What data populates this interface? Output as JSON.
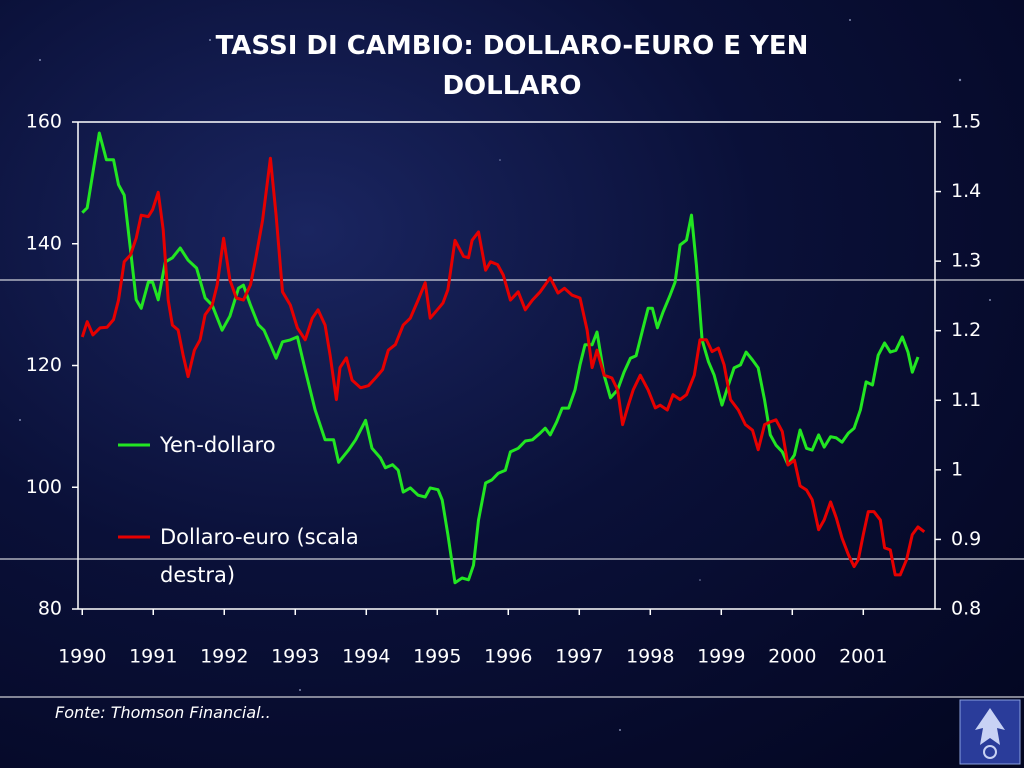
{
  "chart_data": {
    "type": "line",
    "title": "TASSI DI CAMBIO: DOLLARO-EURO E YEN DOLLARO",
    "xlim": [
      1989.94,
      2002.01
    ],
    "xticks": [
      1990,
      1991,
      1992,
      1993,
      1994,
      1995,
      1996,
      1997,
      1998,
      1999,
      2000,
      2001
    ],
    "ylim": [
      80,
      160
    ],
    "yticks": [
      80,
      100,
      120,
      140,
      160
    ],
    "y2lim": [
      0.8,
      1.5
    ],
    "y2ticks": [
      0.8,
      0.9,
      1,
      1.1,
      1.2,
      1.3,
      1.4,
      1.5
    ],
    "grid": false,
    "series": [
      {
        "name": "Yen-dollaro",
        "color": "#22e622",
        "x": [
          1990.0,
          1990.07,
          1990.24,
          1990.34,
          1990.44,
          1990.51,
          1990.59,
          1990.68,
          1990.76,
          1990.83,
          1990.93,
          1990.99,
          1991.07,
          1991.17,
          1991.27,
          1991.38,
          1991.49,
          1991.61,
          1991.73,
          1991.83,
          1991.97,
          1992.08,
          1992.2,
          1992.27,
          1992.37,
          1992.48,
          1992.56,
          1992.65,
          1992.73,
          1992.82,
          1992.93,
          1993.03,
          1993.14,
          1993.28,
          1993.42,
          1993.54,
          1993.61,
          1993.75,
          1993.85,
          1993.99,
          1994.08,
          1994.2,
          1994.27,
          1994.37,
          1994.45,
          1994.52,
          1994.62,
          1994.73,
          1994.83,
          1994.9,
          1995.01,
          1995.07,
          1995.15,
          1995.25,
          1995.35,
          1995.44,
          1995.51,
          1995.58,
          1995.68,
          1995.77,
          1995.86,
          1995.96,
          1996.03,
          1996.14,
          1996.24,
          1996.34,
          1996.45,
          1996.52,
          1996.59,
          1996.68,
          1996.76,
          1996.85,
          1996.94,
          1997.01,
          1997.08,
          1997.18,
          1997.25,
          1997.35,
          1997.44,
          1997.54,
          1997.63,
          1997.72,
          1997.8,
          1997.89,
          1997.97,
          1998.03,
          1998.1,
          1998.18,
          1998.28,
          1998.35,
          1998.42,
          1998.51,
          1998.58,
          1998.65,
          1998.73,
          1998.82,
          1998.9,
          1999.01,
          1999.1,
          1999.18,
          1999.27,
          1999.35,
          1999.44,
          1999.52,
          1999.61,
          1999.69,
          1999.77,
          1999.86,
          1999.94,
          2000.03,
          2000.11,
          2000.2,
          2000.28,
          2000.37,
          2000.45,
          2000.54,
          2000.62,
          2000.7,
          2000.79,
          2000.87,
          2000.96,
          2001.04,
          2001.13,
          2001.21,
          2001.3,
          2001.38,
          2001.46,
          2001.55,
          2001.63,
          2001.69,
          2001.77
        ],
        "values": [
          145.1,
          145.9,
          158.2,
          153.8,
          153.8,
          149.7,
          148.0,
          139.0,
          130.8,
          129.4,
          133.7,
          133.7,
          130.8,
          137.0,
          137.7,
          139.3,
          137.3,
          136.0,
          131.1,
          129.9,
          125.8,
          128.1,
          132.7,
          133.2,
          129.9,
          126.7,
          125.8,
          123.4,
          121.2,
          123.9,
          124.2,
          124.7,
          119.3,
          112.7,
          107.8,
          107.8,
          104.1,
          106.1,
          107.8,
          111.0,
          106.4,
          104.8,
          103.2,
          103.7,
          102.8,
          99.2,
          99.9,
          98.7,
          98.4,
          99.9,
          99.6,
          97.9,
          92.2,
          84.3,
          85.1,
          84.8,
          87.2,
          94.6,
          100.7,
          101.2,
          102.3,
          102.8,
          105.8,
          106.4,
          107.6,
          107.8,
          108.9,
          109.7,
          108.6,
          110.7,
          113.0,
          113.0,
          116.0,
          120.1,
          123.4,
          123.4,
          125.5,
          118.4,
          114.7,
          116.0,
          118.9,
          121.2,
          121.6,
          125.8,
          129.4,
          129.4,
          126.2,
          128.8,
          131.6,
          133.7,
          139.8,
          140.6,
          144.7,
          136.5,
          124.2,
          120.6,
          118.4,
          113.5,
          116.8,
          119.6,
          120.1,
          122.2,
          120.9,
          119.6,
          114.3,
          108.6,
          106.9,
          105.8,
          103.7,
          105.3,
          109.4,
          106.4,
          106.1,
          108.6,
          106.6,
          108.3,
          108.1,
          107.4,
          108.9,
          109.7,
          112.7,
          117.3,
          116.8,
          121.7,
          123.7,
          122.2,
          122.5,
          124.7,
          122.2,
          118.9,
          121.4
        ]
      },
      {
        "name": "Dollaro-euro (scala destra)",
        "color": "#e60000",
        "axis": "y2",
        "x": [
          1990.0,
          1990.07,
          1990.15,
          1990.25,
          1990.35,
          1990.44,
          1990.51,
          1990.59,
          1990.68,
          1990.76,
          1990.83,
          1990.93,
          1990.99,
          1991.07,
          1991.14,
          1991.21,
          1991.27,
          1991.35,
          1991.42,
          1991.49,
          1991.58,
          1991.66,
          1991.73,
          1991.83,
          1991.9,
          1991.99,
          1992.08,
          1992.17,
          1992.27,
          1992.37,
          1992.44,
          1992.54,
          1992.65,
          1992.73,
          1992.82,
          1992.93,
          1993.03,
          1993.14,
          1993.24,
          1993.32,
          1993.42,
          1993.49,
          1993.58,
          1993.63,
          1993.72,
          1993.8,
          1993.92,
          1994.03,
          1994.13,
          1994.23,
          1994.31,
          1994.41,
          1994.52,
          1994.62,
          1994.73,
          1994.83,
          1994.9,
          1995.0,
          1995.08,
          1995.15,
          1995.25,
          1995.37,
          1995.44,
          1995.49,
          1995.58,
          1995.68,
          1995.75,
          1995.85,
          1995.93,
          1996.03,
          1996.14,
          1996.24,
          1996.34,
          1996.45,
          1996.59,
          1996.7,
          1996.79,
          1996.9,
          1997.01,
          1997.11,
          1997.18,
          1997.25,
          1997.35,
          1997.46,
          1997.54,
          1997.61,
          1997.69,
          1997.76,
          1997.86,
          1997.97,
          1998.07,
          1998.14,
          1998.24,
          1998.32,
          1998.42,
          1998.51,
          1998.62,
          1998.7,
          1998.79,
          1998.87,
          1998.96,
          1999.04,
          1999.13,
          1999.24,
          1999.34,
          1999.44,
          1999.52,
          1999.61,
          1999.69,
          1999.77,
          1999.86,
          1999.94,
          2000.03,
          2000.11,
          2000.2,
          2000.28,
          2000.37,
          2000.45,
          2000.54,
          2000.62,
          2000.7,
          2000.79,
          2000.87,
          2000.93,
          2001.0,
          2001.07,
          2001.15,
          2001.24,
          2001.3,
          2001.38,
          2001.45,
          2001.52,
          2001.61,
          2001.69,
          2001.77,
          2001.86
        ],
        "values": [
          1.191,
          1.213,
          1.194,
          1.204,
          1.205,
          1.216,
          1.244,
          1.299,
          1.309,
          1.333,
          1.366,
          1.364,
          1.374,
          1.399,
          1.345,
          1.244,
          1.208,
          1.201,
          1.165,
          1.134,
          1.172,
          1.187,
          1.223,
          1.237,
          1.266,
          1.333,
          1.273,
          1.247,
          1.244,
          1.266,
          1.302,
          1.359,
          1.448,
          1.366,
          1.256,
          1.237,
          1.204,
          1.187,
          1.218,
          1.23,
          1.208,
          1.165,
          1.101,
          1.147,
          1.161,
          1.129,
          1.118,
          1.121,
          1.132,
          1.144,
          1.172,
          1.18,
          1.208,
          1.218,
          1.244,
          1.269,
          1.218,
          1.23,
          1.24,
          1.259,
          1.33,
          1.307,
          1.305,
          1.33,
          1.342,
          1.287,
          1.299,
          1.295,
          1.28,
          1.244,
          1.256,
          1.23,
          1.244,
          1.256,
          1.276,
          1.254,
          1.261,
          1.251,
          1.247,
          1.201,
          1.147,
          1.172,
          1.136,
          1.132,
          1.115,
          1.065,
          1.093,
          1.115,
          1.136,
          1.115,
          1.089,
          1.093,
          1.086,
          1.108,
          1.101,
          1.108,
          1.136,
          1.187,
          1.187,
          1.17,
          1.175,
          1.151,
          1.101,
          1.086,
          1.065,
          1.057,
          1.029,
          1.065,
          1.069,
          1.072,
          1.055,
          1.007,
          1.014,
          0.977,
          0.971,
          0.957,
          0.914,
          0.928,
          0.954,
          0.931,
          0.902,
          0.878,
          0.861,
          0.871,
          0.907,
          0.94,
          0.94,
          0.928,
          0.888,
          0.885,
          0.849,
          0.849,
          0.871,
          0.907,
          0.918,
          0.911
        ]
      }
    ]
  },
  "footer": {
    "source": "Fonte: Thomson Financial.."
  }
}
